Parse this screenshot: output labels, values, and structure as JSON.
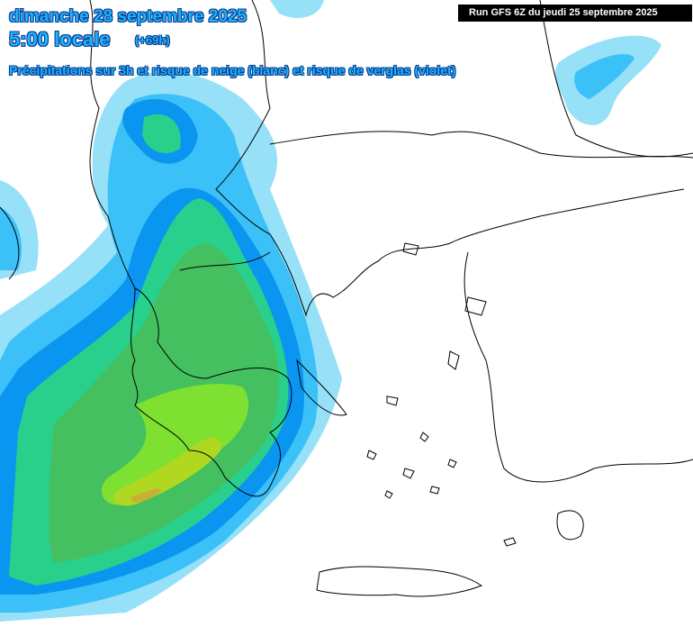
{
  "header": {
    "date": "dimanche 28 septembre 2025",
    "hour": "5:00 locale",
    "lead_time": "(+69h)",
    "subtitle": "Précipitations sur 3h et risque de neige (blanc) et risque de verglas (violet)",
    "run_info": "Run GFS 6Z du jeudi 25 septembre 2025"
  },
  "colors": {
    "precip_light": "#96e0f8",
    "precip_cyan": "#3cc0f8",
    "precip_blue": "#0a96f0",
    "precip_teal": "#28d08c",
    "precip_green": "#44c060",
    "precip_lime": "#7ee030",
    "precip_yellowgreen": "#b0d820",
    "precip_olive": "#c8b038",
    "border": "#000000"
  }
}
